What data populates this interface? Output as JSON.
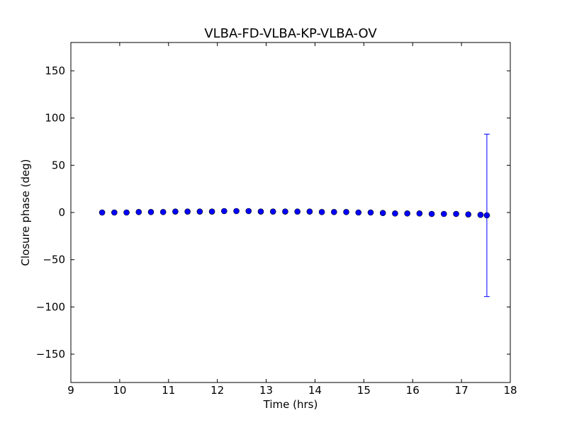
{
  "chart_data": {
    "type": "scatter",
    "title": "VLBA-FD-VLBA-KP-VLBA-OV",
    "xlabel": "Time (hrs)",
    "ylabel": "Closure phase (deg)",
    "xlim": [
      9,
      18
    ],
    "ylim": [
      -180,
      180
    ],
    "xticks": [
      9,
      10,
      11,
      12,
      13,
      14,
      15,
      16,
      17,
      18
    ],
    "yticks": [
      -150,
      -100,
      -50,
      0,
      50,
      100,
      150
    ],
    "ytick_labels": [
      "−150",
      "−100",
      "−50",
      "0",
      "50",
      "100",
      "150"
    ],
    "grid": false,
    "colors": {
      "marker": "#0000ff",
      "marker_edge": "#000000",
      "errorbar": "#0000ff",
      "axes": "#000000"
    },
    "series": [
      {
        "x": [
          9.64,
          9.89,
          10.14,
          10.39,
          10.64,
          10.89,
          11.14,
          11.39,
          11.64,
          11.89,
          12.14,
          12.39,
          12.64,
          12.89,
          13.14,
          13.39,
          13.64,
          13.89,
          14.14,
          14.39,
          14.64,
          14.89,
          15.14,
          15.39,
          15.64,
          15.89,
          16.14,
          16.39,
          16.64,
          16.89,
          17.14,
          17.39,
          17.52
        ],
        "y": [
          0,
          0,
          0,
          0.5,
          0.5,
          0.5,
          1,
          1,
          1,
          1,
          1.5,
          1.5,
          1.5,
          1,
          1,
          1,
          1,
          1,
          0.5,
          0.5,
          0.5,
          0,
          0,
          -0.5,
          -1,
          -1,
          -1,
          -1.5,
          -1.5,
          -1.5,
          -2,
          -2.5,
          -3
        ],
        "error": [
          0,
          0,
          0,
          0,
          0,
          0,
          0,
          0,
          0,
          0,
          0,
          0,
          0,
          0,
          0,
          0,
          0,
          0,
          0,
          0,
          0,
          0,
          0,
          0,
          0,
          0,
          0,
          0,
          0,
          0,
          0,
          0,
          86
        ]
      }
    ]
  }
}
